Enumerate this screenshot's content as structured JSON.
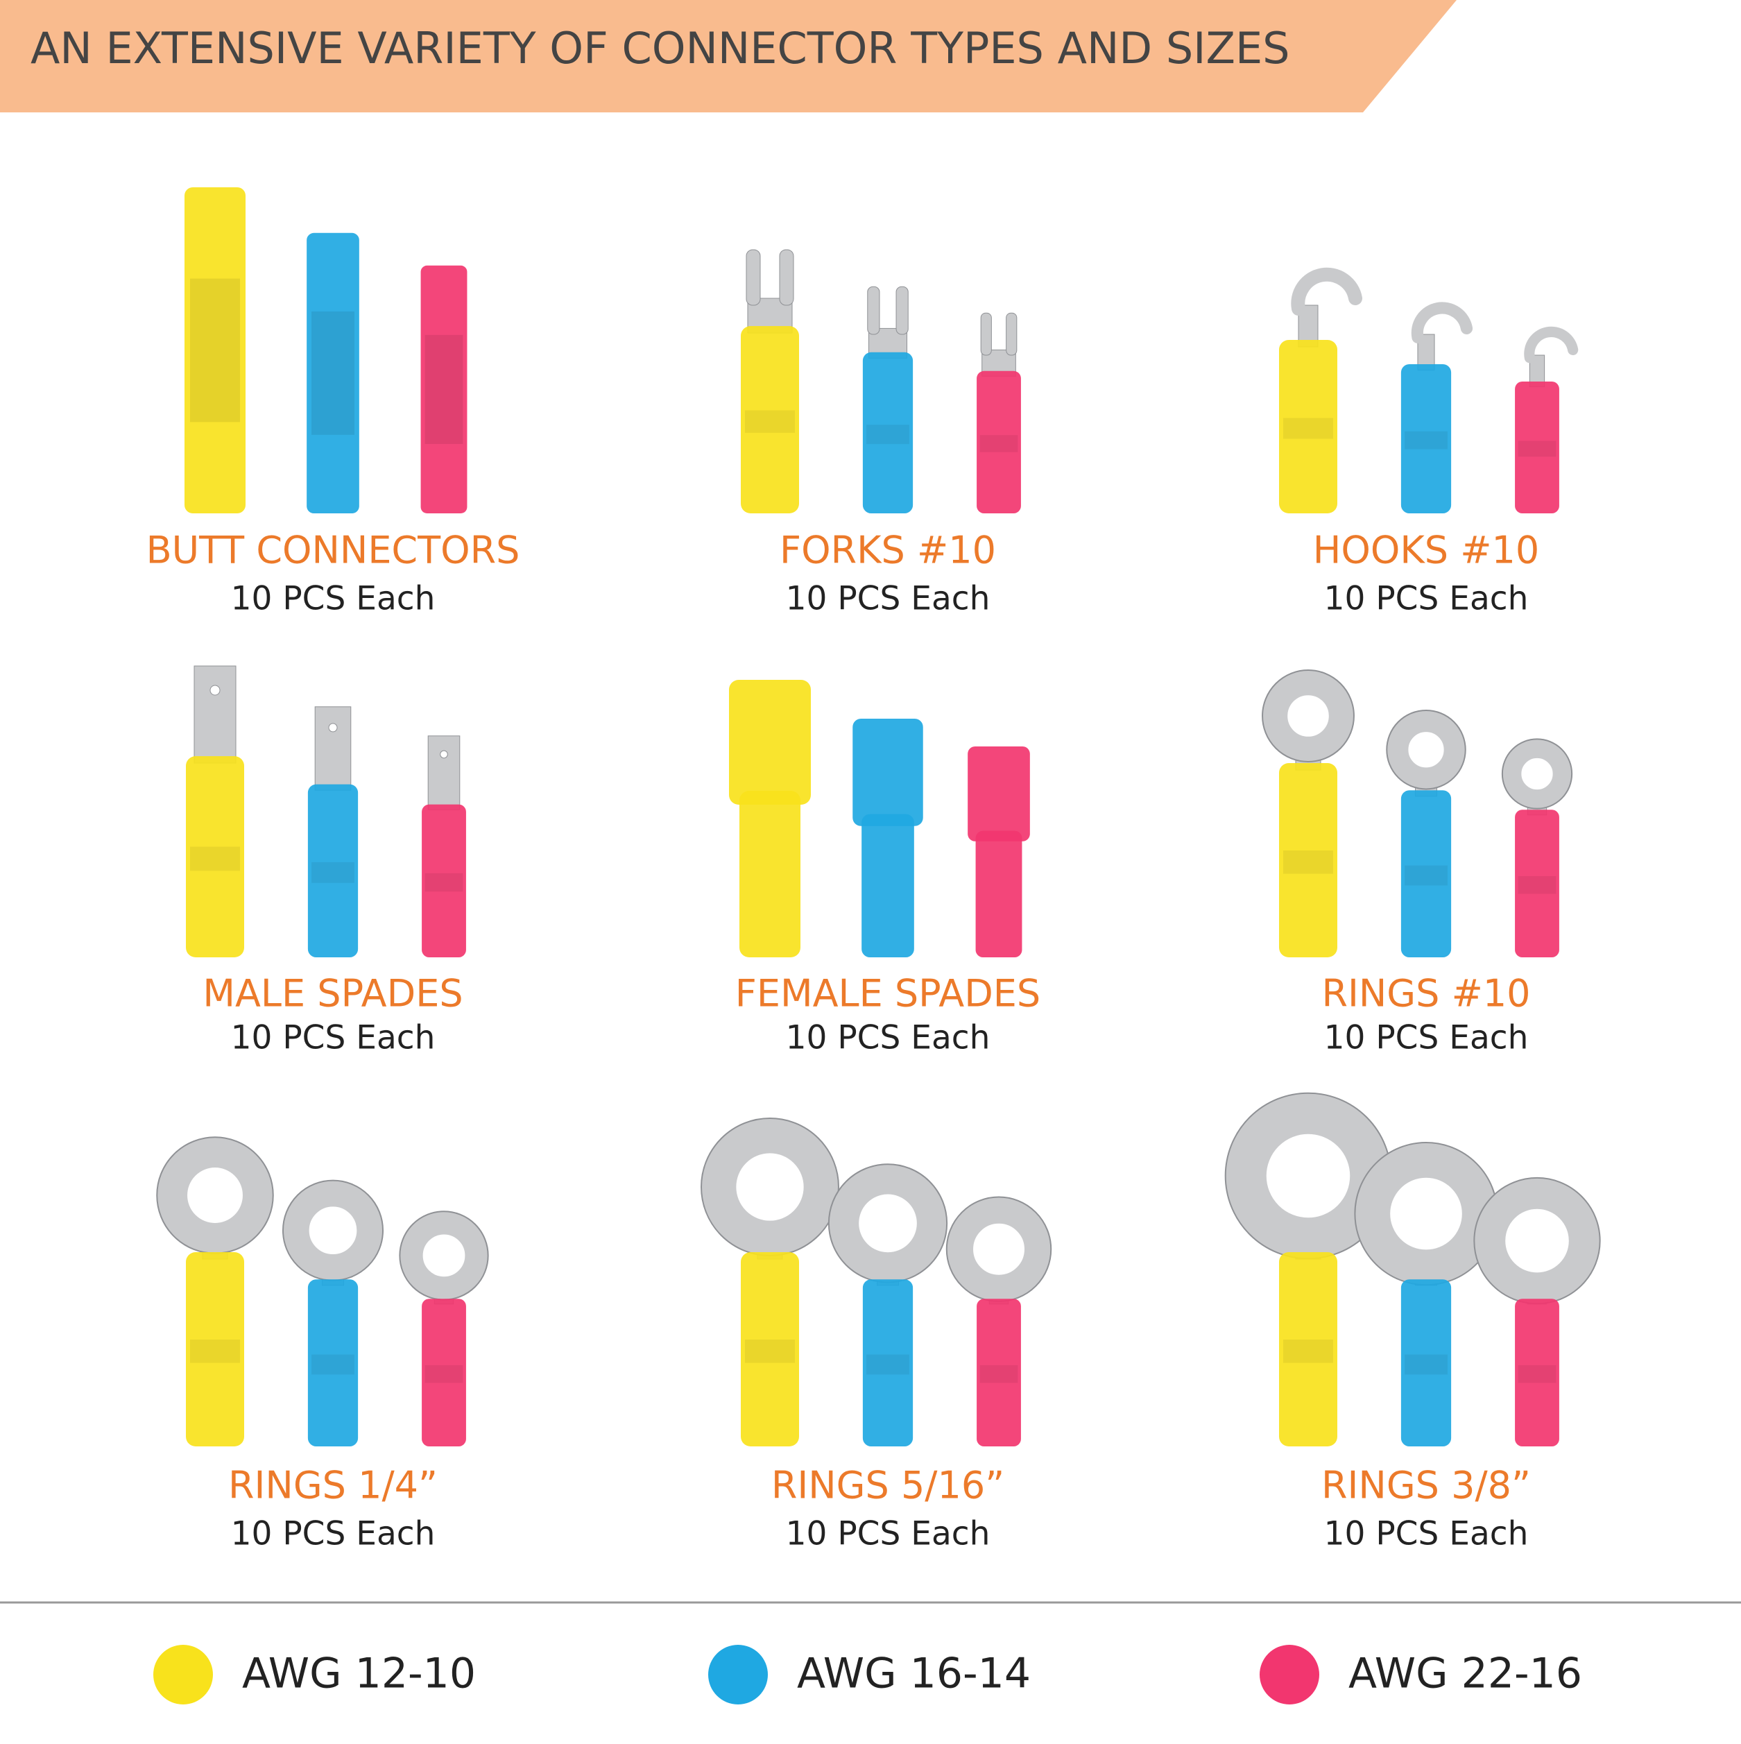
{
  "header": {
    "title": "AN EXTENSIVE VARIETY OF CONNECTOR TYPES AND SIZES"
  },
  "items": [
    {
      "title": "BUTT CONNECTORS",
      "subtitle": "10 PCS Each"
    },
    {
      "title": "FORKS #10",
      "subtitle": "10 PCS Each"
    },
    {
      "title": "HOOKS #10",
      "subtitle": "10 PCS Each"
    },
    {
      "title": "MALE SPADES",
      "subtitle": "10 PCS Each"
    },
    {
      "title": "FEMALE SPADES",
      "subtitle": "10 PCS Each"
    },
    {
      "title": "RINGS #10",
      "subtitle": "10 PCS Each"
    },
    {
      "title": "RINGS 1/4”",
      "subtitle": "10 PCS Each"
    },
    {
      "title": "RINGS 5/16”",
      "subtitle": "10 PCS Each"
    },
    {
      "title": "RINGS 3/8”",
      "subtitle": "10 PCS Each"
    }
  ],
  "legend": [
    {
      "label": "AWG 12-10",
      "color": "#f8e21c"
    },
    {
      "label": "AWG 16-14",
      "color": "#1fa8e2"
    },
    {
      "label": "AWG 22-16",
      "color": "#f2366f"
    }
  ]
}
